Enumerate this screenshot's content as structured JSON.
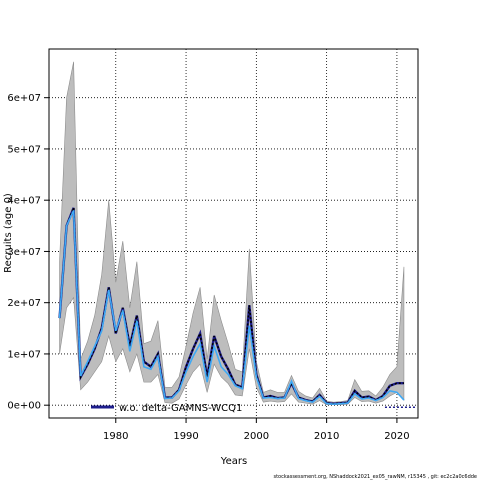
{
  "chart_data": {
    "type": "line",
    "title": "",
    "xlabel": "Years",
    "ylabel": "Recruits (age 0)",
    "xlim": [
      1970.5,
      2023
    ],
    "ylim": [
      -2500000,
      69500000
    ],
    "x_ticks": [
      1980,
      1990,
      2000,
      2010,
      2020
    ],
    "x_tick_labels": [
      "1980",
      "1990",
      "2000",
      "2010",
      "2020"
    ],
    "y_ticks": [
      0,
      10000000,
      20000000,
      30000000,
      40000000,
      50000000,
      60000000
    ],
    "y_tick_labels": [
      "0e+00",
      "1e+07",
      "2e+07",
      "3e+07",
      "4e+07",
      "5e+07",
      "6e+07"
    ],
    "grid": true,
    "legend": {
      "placement": "bottom",
      "entries": [
        "w.o. delta-GAMNS-WCQ1"
      ]
    },
    "footer": "stockassessment.org, NShaddock2021_ex05_rawNM, r15345 ,  git: ec2c2a0c6dde",
    "x": [
      1972,
      1973,
      1974,
      1975,
      1976,
      1977,
      1978,
      1979,
      1980,
      1981,
      1982,
      1983,
      1984,
      1985,
      1986,
      1987,
      1988,
      1989,
      1990,
      1991,
      1992,
      1993,
      1994,
      1995,
      1996,
      1997,
      1998,
      1999,
      2000,
      2001,
      2002,
      2003,
      2004,
      2005,
      2006,
      2007,
      2008,
      2009,
      2010,
      2011,
      2012,
      2013,
      2014,
      2015,
      2016,
      2017,
      2018,
      2019,
      2020,
      2021
    ],
    "series": [
      {
        "name": "w.o. delta-GAMNS-WCQ1",
        "values": [
          17000000,
          35000000,
          38500000,
          5500000,
          8000000,
          11000000,
          15000000,
          23000000,
          14000000,
          19000000,
          11500000,
          17500000,
          8500000,
          7500000,
          10000000,
          1500000,
          1500000,
          3000000,
          7500000,
          11000000,
          14000000,
          5500000,
          13500000,
          9500000,
          7000000,
          4000000,
          3500000,
          19500000,
          6000000,
          1500000,
          1800000,
          1400000,
          1500000,
          4300000,
          1500000,
          1000000,
          700000,
          2000000,
          400000,
          300000,
          400000,
          500000,
          2800000,
          1500000,
          1700000,
          1000000,
          1800000,
          3800000,
          4300000,
          4300000
        ],
        "lower": [
          10000000,
          19000000,
          21000000,
          3000000,
          4500000,
          6500000,
          8500000,
          13500000,
          8500000,
          11000000,
          6500000,
          10000000,
          4500000,
          4500000,
          6000000,
          500000,
          400000,
          1200000,
          4000000,
          6500000,
          8000000,
          2500000,
          8000000,
          5500000,
          4200000,
          2000000,
          1800000,
          11000000,
          3500000,
          600000,
          800000,
          600000,
          700000,
          2200000,
          600000,
          400000,
          200000,
          900000,
          100000,
          100000,
          100000,
          200000,
          1500000,
          700000,
          800000,
          400000,
          800000,
          1800000,
          2500000,
          1000000
        ],
        "upper": [
          28000000,
          60000000,
          67000000,
          9000000,
          12500000,
          17500000,
          25500000,
          40000000,
          24000000,
          32000000,
          19000000,
          28000000,
          12000000,
          12500000,
          16500000,
          3500000,
          3500000,
          5500000,
          11500000,
          18000000,
          23000000,
          9000000,
          21500000,
          16500000,
          12000000,
          7000000,
          6500000,
          30500000,
          8500000,
          2500000,
          3000000,
          2500000,
          2500000,
          5800000,
          2700000,
          1800000,
          1400000,
          3300000,
          800000,
          600000,
          700000,
          900000,
          5000000,
          2700000,
          2800000,
          1800000,
          3500000,
          6000000,
          7500000,
          27000000
        ]
      },
      {
        "name": "",
        "values": [
          17000000,
          35000000,
          38000000,
          5700000,
          8500000,
          11500000,
          14500000,
          22500000,
          14500000,
          18500000,
          10500000,
          16500000,
          7500000,
          7000000,
          9500000,
          1300000,
          1400000,
          2800000,
          6500000,
          9500000,
          12000000,
          4500000,
          11500000,
          7500000,
          6000000,
          3800000,
          3200000,
          15500000,
          5500000,
          1400000,
          1500000,
          1300000,
          1400000,
          4700000,
          1300000,
          900000,
          600000,
          1700000,
          300000,
          200000,
          300000,
          400000,
          2200000,
          1200000,
          1400000,
          900000,
          1500000,
          2800000,
          2500000,
          1000000
        ]
      }
    ]
  }
}
